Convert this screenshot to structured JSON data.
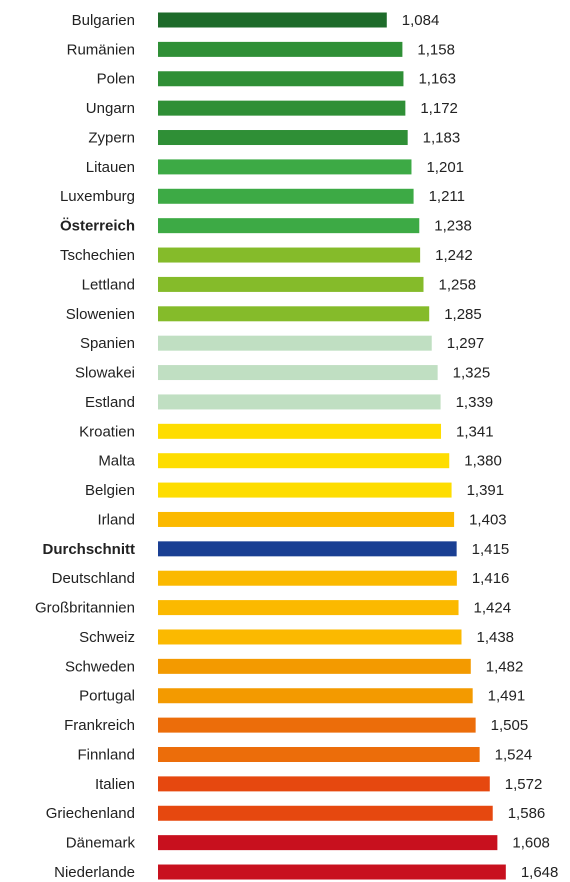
{
  "chart_data": {
    "type": "bar",
    "orientation": "horizontal",
    "categories": [
      "Bulgarien",
      "Rumänien",
      "Polen",
      "Ungarn",
      "Zypern",
      "Litauen",
      "Luxemburg",
      "Österreich",
      "Tschechien",
      "Lettland",
      "Slowenien",
      "Spanien",
      "Slowakei",
      "Estland",
      "Kroatien",
      "Malta",
      "Belgien",
      "Irland",
      "Durchschnitt",
      "Deutschland",
      "Großbritannien",
      "Schweiz",
      "Schweden",
      "Portugal",
      "Frankreich",
      "Finnland",
      "Italien",
      "Griechenland",
      "Dänemark",
      "Niederlande"
    ],
    "values": [
      1.084,
      1.158,
      1.163,
      1.172,
      1.183,
      1.201,
      1.211,
      1.238,
      1.242,
      1.258,
      1.285,
      1.297,
      1.325,
      1.339,
      1.341,
      1.38,
      1.391,
      1.403,
      1.415,
      1.416,
      1.424,
      1.438,
      1.482,
      1.491,
      1.505,
      1.524,
      1.572,
      1.586,
      1.608,
      1.648
    ],
    "value_labels": [
      "1,084",
      "1,158",
      "1,163",
      "1,172",
      "1,183",
      "1,201",
      "1,211",
      "1,238",
      "1,242",
      "1,258",
      "1,285",
      "1,297",
      "1,325",
      "1,339",
      "1,341",
      "1,380",
      "1,391",
      "1,403",
      "1,415",
      "1,416",
      "1,424",
      "1,438",
      "1,482",
      "1,491",
      "1,505",
      "1,524",
      "1,572",
      "1,586",
      "1,608",
      "1,648"
    ],
    "colors": [
      "#1e6b2a",
      "#2f8f36",
      "#2f8f36",
      "#2f8f36",
      "#2f8f36",
      "#3daa45",
      "#3daa45",
      "#3daa45",
      "#85bb2a",
      "#85bb2a",
      "#85bb2a",
      "#c0dfc2",
      "#c0dfc2",
      "#c0dfc2",
      "#fedd00",
      "#fedd00",
      "#fedd00",
      "#fbb900",
      "#1a3f93",
      "#fbb900",
      "#fbb900",
      "#fbb900",
      "#f39a00",
      "#f39a00",
      "#ec6d0a",
      "#ec6d0a",
      "#e6480f",
      "#e6480f",
      "#c8101e",
      "#c8101e"
    ],
    "bold": [
      false,
      false,
      false,
      false,
      false,
      false,
      false,
      true,
      false,
      false,
      false,
      false,
      false,
      false,
      false,
      false,
      false,
      false,
      true,
      false,
      false,
      false,
      false,
      false,
      false,
      false,
      false,
      false,
      false,
      false
    ],
    "xlim": [
      0,
      1.9
    ]
  }
}
